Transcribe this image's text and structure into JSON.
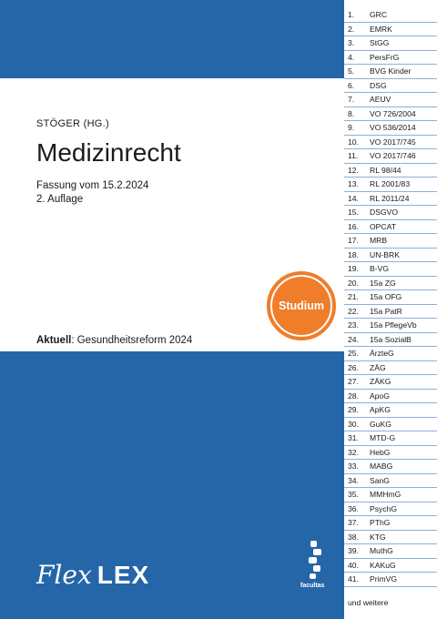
{
  "cover": {
    "editor": "STÖGER (HG.)",
    "title": "Medizinrecht",
    "edition_date": "Fassung vom 15.2.2024",
    "edition": "2. Auflage",
    "aktuell_label": "Aktuell",
    "aktuell_text": ": Gesundheitsreform 2024",
    "badge": "Studium",
    "logo_flex": "Flex",
    "logo_lex": "LEX",
    "publisher": "facultas"
  },
  "colors": {
    "blue": "#2566a8",
    "orange": "#ef7d2a",
    "tab_line": "#8ab1d9"
  },
  "tabs": [
    {
      "num": "1.",
      "name": "GRC"
    },
    {
      "num": "2.",
      "name": "EMRK"
    },
    {
      "num": "3.",
      "name": "StGG"
    },
    {
      "num": "4.",
      "name": "PersFrG"
    },
    {
      "num": "5.",
      "name": "BVG Kinder"
    },
    {
      "num": "6.",
      "name": "DSG"
    },
    {
      "num": "7.",
      "name": "AEUV"
    },
    {
      "num": "8.",
      "name": "VO 726/2004"
    },
    {
      "num": "9.",
      "name": "VO 536/2014"
    },
    {
      "num": "10.",
      "name": "VO 2017/745"
    },
    {
      "num": "11.",
      "name": "VO 2017/746"
    },
    {
      "num": "12.",
      "name": "RL 98/44"
    },
    {
      "num": "13.",
      "name": "RL 2001/83"
    },
    {
      "num": "14.",
      "name": "RL 2011/24"
    },
    {
      "num": "15.",
      "name": "DSGVO"
    },
    {
      "num": "16.",
      "name": "OPCAT"
    },
    {
      "num": "17.",
      "name": "MRB"
    },
    {
      "num": "18.",
      "name": "UN-BRK"
    },
    {
      "num": "19.",
      "name": "B-VG"
    },
    {
      "num": "20.",
      "name": "15a ZG"
    },
    {
      "num": "21.",
      "name": "15a OFG"
    },
    {
      "num": "22.",
      "name": "15a PatR"
    },
    {
      "num": "23.",
      "name": "15a PflegeVb"
    },
    {
      "num": "24.",
      "name": "15a SozialB"
    },
    {
      "num": "25.",
      "name": "ÄrzteG"
    },
    {
      "num": "26.",
      "name": "ZÄG"
    },
    {
      "num": "27.",
      "name": "ZÄKG"
    },
    {
      "num": "28.",
      "name": "ApoG"
    },
    {
      "num": "29.",
      "name": "ApKG"
    },
    {
      "num": "30.",
      "name": "GuKG"
    },
    {
      "num": "31.",
      "name": "MTD-G"
    },
    {
      "num": "32.",
      "name": "HebG"
    },
    {
      "num": "33.",
      "name": "MABG"
    },
    {
      "num": "34.",
      "name": "SanG"
    },
    {
      "num": "35.",
      "name": "MMHmG"
    },
    {
      "num": "36.",
      "name": "PsychG"
    },
    {
      "num": "37.",
      "name": "PThG"
    },
    {
      "num": "38.",
      "name": "KTG"
    },
    {
      "num": "39.",
      "name": "MuthG"
    },
    {
      "num": "40.",
      "name": "KAKuG"
    },
    {
      "num": "41.",
      "name": "PrimVG"
    }
  ],
  "more_label": "und weitere"
}
